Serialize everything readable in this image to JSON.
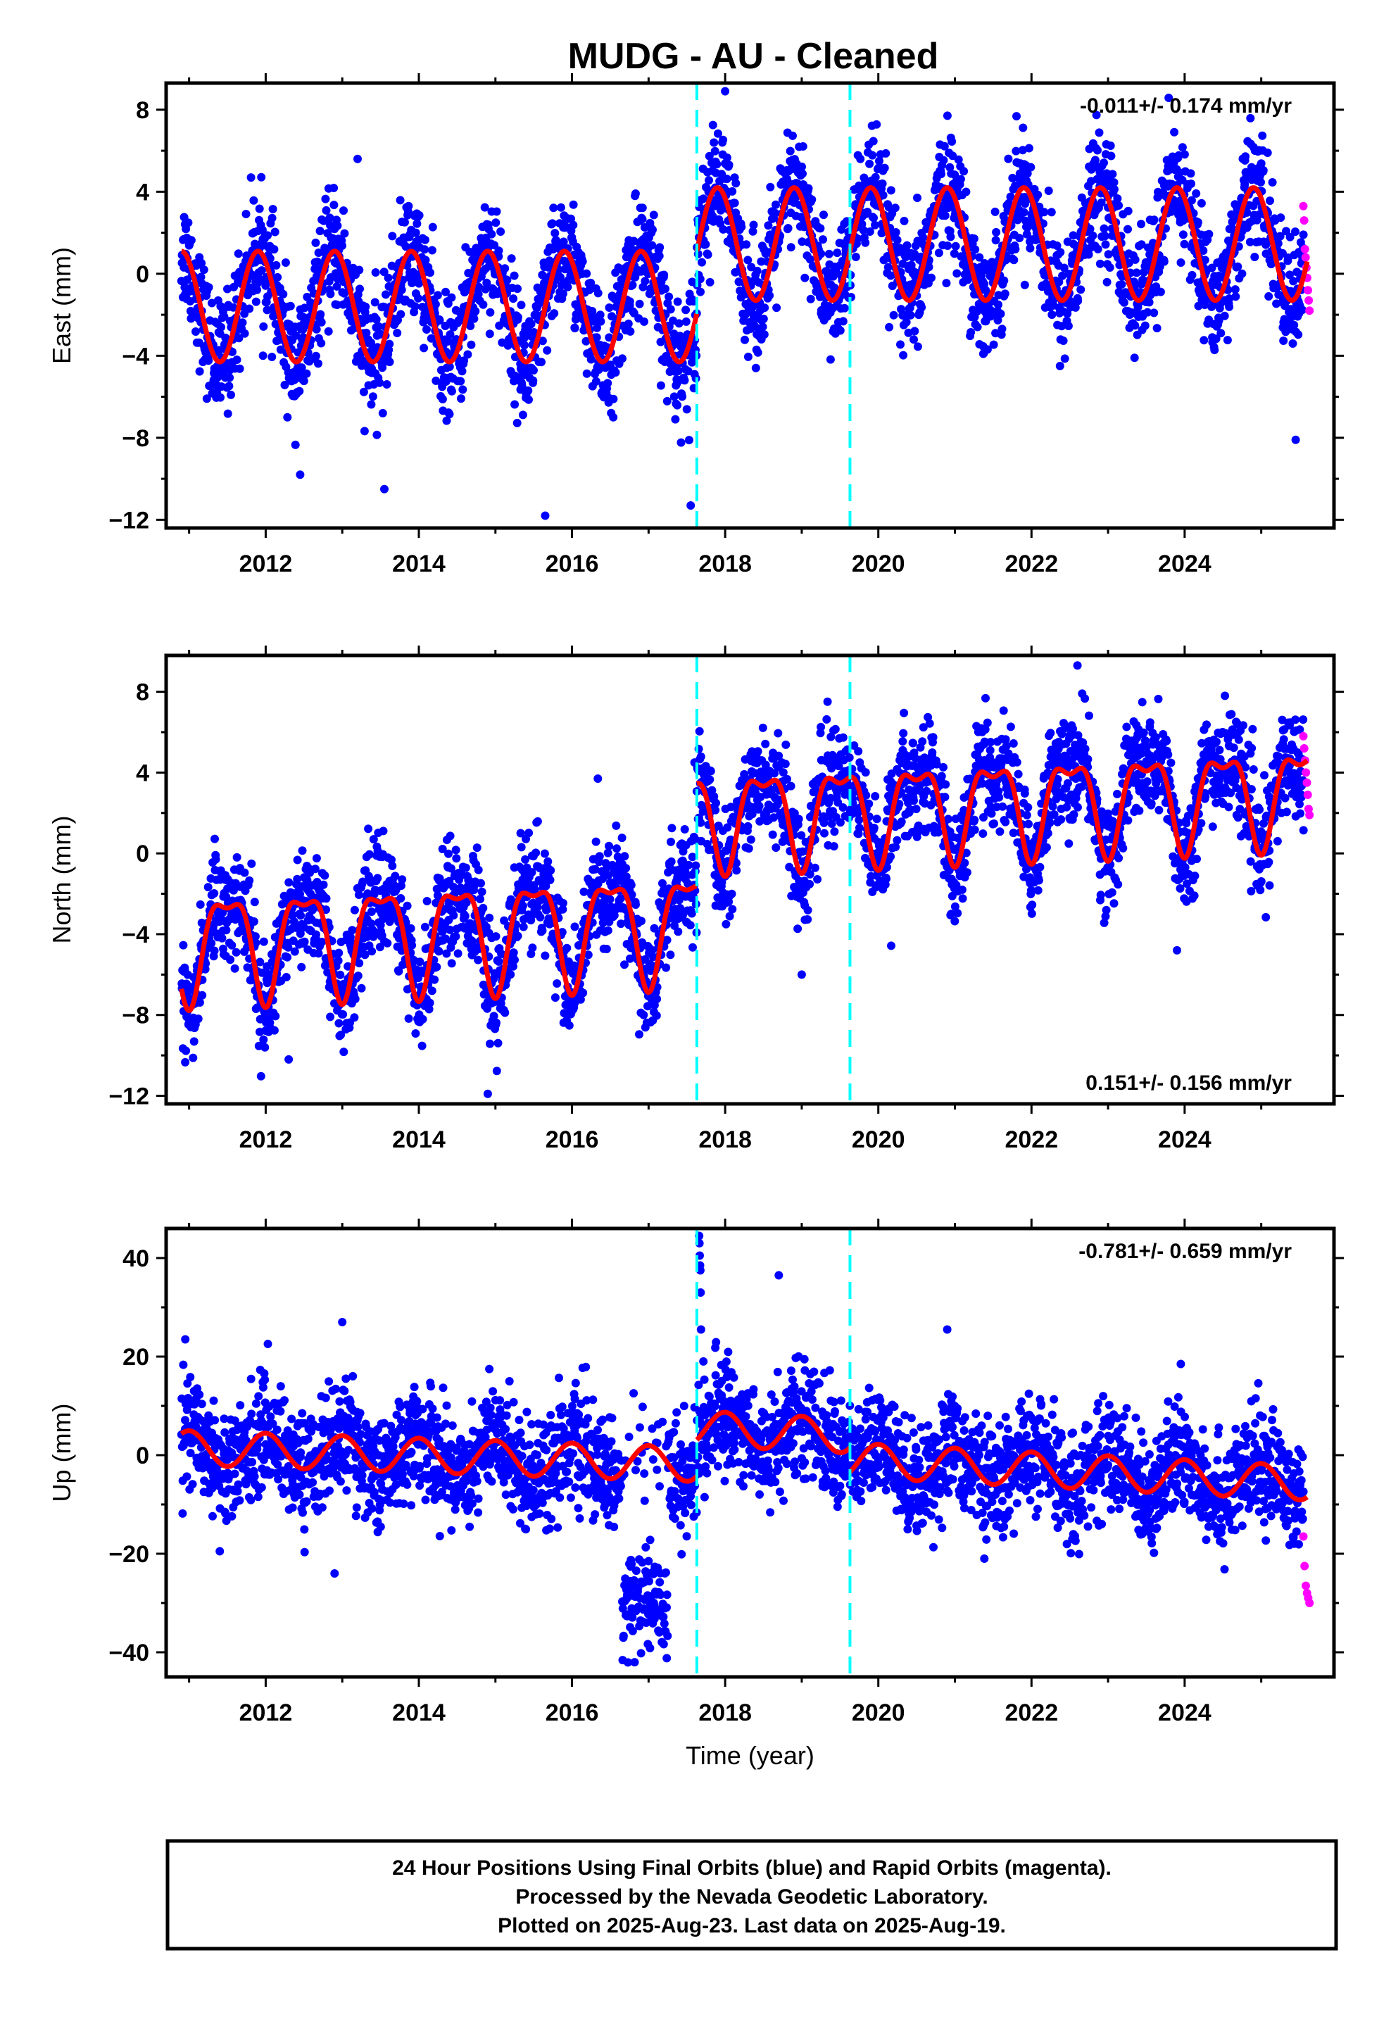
{
  "title": "MUDG  - AU - Cleaned",
  "caption": {
    "line1": "24 Hour Positions Using Final Orbits (blue) and Rapid Orbits (magenta).",
    "line2": "Processed by the Nevada Geodetic Laboratory.",
    "line3": "Plotted on 2025-Aug-23. Last data on 2025-Aug-19."
  },
  "colors": {
    "final": "#0000ff",
    "rapid": "#ff00ff",
    "model": "#ff0000",
    "event_lines": "#00ffff"
  },
  "chart_data": [
    {
      "type": "scatter",
      "panel": "east",
      "ylabel": "East (mm)",
      "rate_label": "-0.011+/- 0.174 mm/yr",
      "rate_position": "top-right",
      "xlim": [
        2010.7,
        2025.95
      ],
      "ylim": [
        -12.4,
        9.3
      ],
      "yticks": [
        -12,
        -8,
        -4,
        0,
        4,
        8
      ],
      "xticks": [
        2012,
        2014,
        2016,
        2018,
        2020,
        2022,
        2024
      ],
      "xtick_labels": [
        "2012",
        "2014",
        "2016",
        "2018",
        "2020",
        "2022",
        "2024"
      ],
      "event_lines": [
        2017.63,
        2019.63
      ],
      "data_start": 2010.9,
      "data_end": 2025.55,
      "rapid_start": 2025.55,
      "rapid_end": 2025.63,
      "rapid_values": [
        3.3,
        2.6,
        1.2,
        0.8,
        0.3,
        -0.2,
        -0.8,
        -1.3,
        -1.8
      ],
      "model_segments": [
        {
          "from": 2010.9,
          "to": 2017.63,
          "offset": -1.6,
          "amplitude": 2.7,
          "phase": 0.9,
          "trend": 0.0
        },
        {
          "from": 2017.63,
          "to": 2025.6,
          "offset": 1.45,
          "amplitude": 2.75,
          "phase": 0.9,
          "trend": 0.0
        }
      ],
      "scatter": 1.4,
      "outliers": [
        [
          2015.65,
          -11.8
        ],
        [
          2017.55,
          -11.3
        ],
        [
          2018.0,
          8.9
        ],
        [
          2013.55,
          -10.5
        ],
        [
          2012.45,
          -9.8
        ],
        [
          2025.45,
          -8.1
        ],
        [
          2013.2,
          5.6
        ]
      ]
    },
    {
      "type": "scatter",
      "panel": "north",
      "ylabel": "North (mm)",
      "rate_label": "0.151+/- 0.156 mm/yr",
      "rate_position": "bottom-right",
      "xlim": [
        2010.7,
        2025.95
      ],
      "ylim": [
        -12.4,
        9.8
      ],
      "yticks": [
        -12,
        -8,
        -4,
        0,
        4,
        8
      ],
      "xticks": [
        2012,
        2014,
        2016,
        2018,
        2020,
        2022,
        2024
      ],
      "xtick_labels": [
        "2012",
        "2014",
        "2016",
        "2018",
        "2020",
        "2022",
        "2024"
      ],
      "event_lines": [
        2017.63,
        2019.63
      ],
      "data_start": 2010.9,
      "data_end": 2025.55,
      "rapid_start": 2025.55,
      "rapid_end": 2025.63,
      "rapid_values": [
        5.8,
        5.2,
        4.6,
        4.0,
        3.5,
        2.9,
        2.2,
        1.9
      ],
      "model_segments": [
        {
          "from": 2010.9,
          "to": 2017.63,
          "offset": -4.4,
          "amplitude": 2.5,
          "phase": 0.5,
          "trend": 0.15,
          "ref": 2010.9
        },
        {
          "from": 2017.63,
          "to": 2025.6,
          "offset": 1.9,
          "amplitude": 2.2,
          "phase": 0.5,
          "trend": 0.15,
          "ref": 2017.63
        }
      ],
      "scatter": 1.3,
      "outliers": [
        [
          2014.9,
          -11.9
        ],
        [
          2019.0,
          -6.0
        ],
        [
          2022.6,
          9.3
        ],
        [
          2023.9,
          -4.8
        ],
        [
          2017.6,
          4.5
        ],
        [
          2012.3,
          -10.2
        ]
      ]
    },
    {
      "type": "scatter",
      "panel": "up",
      "ylabel": "Up (mm)",
      "xlabel": "Time (year)",
      "rate_label": "-0.781+/- 0.659 mm/yr",
      "rate_position": "top-right",
      "xlim": [
        2010.7,
        2025.95
      ],
      "ylim": [
        -45,
        46
      ],
      "yticks": [
        -40,
        -20,
        0,
        20,
        40
      ],
      "xticks": [
        2012,
        2014,
        2016,
        2018,
        2020,
        2022,
        2024
      ],
      "xtick_labels": [
        "2012",
        "2014",
        "2016",
        "2018",
        "2020",
        "2022",
        "2024"
      ],
      "event_lines": [
        2017.63,
        2019.63
      ],
      "data_start": 2010.9,
      "data_end": 2025.55,
      "rapid_start": 2025.55,
      "rapid_end": 2025.63,
      "rapid_values": [
        -16.5,
        -22.5,
        -26.5,
        -28.0,
        -29.0,
        -30.0
      ],
      "model_segments": [
        {
          "from": 2010.9,
          "to": 2017.63,
          "offset": 1.5,
          "amplitude": 3.5,
          "phase": 0.0,
          "trend": -0.5,
          "ref": 2010.9
        },
        {
          "from": 2017.63,
          "to": 2019.63,
          "offset": 5.5,
          "amplitude": 3.5,
          "phase": 0.0,
          "trend": -0.8,
          "ref": 2017.63
        },
        {
          "from": 2019.63,
          "to": 2025.6,
          "offset": -1.0,
          "amplitude": 3.5,
          "phase": 0.0,
          "trend": -0.78,
          "ref": 2019.63
        }
      ],
      "scatter": 5.5,
      "anomaly": {
        "from": 2016.65,
        "to": 2017.25,
        "center": -30.0,
        "spread": 5.0
      },
      "spike": {
        "at": 2017.66,
        "values": [
          44.5,
          43.0,
          40.5,
          38.5,
          37.5,
          33.0,
          25.5
        ]
      },
      "outliers": [
        [
          2010.95,
          23.5
        ],
        [
          2013.0,
          27.0
        ],
        [
          2012.9,
          -24.0
        ],
        [
          2011.4,
          -19.5
        ],
        [
          2018.7,
          36.5
        ],
        [
          2023.95,
          18.5
        ],
        [
          2020.9,
          25.5
        ]
      ]
    }
  ]
}
